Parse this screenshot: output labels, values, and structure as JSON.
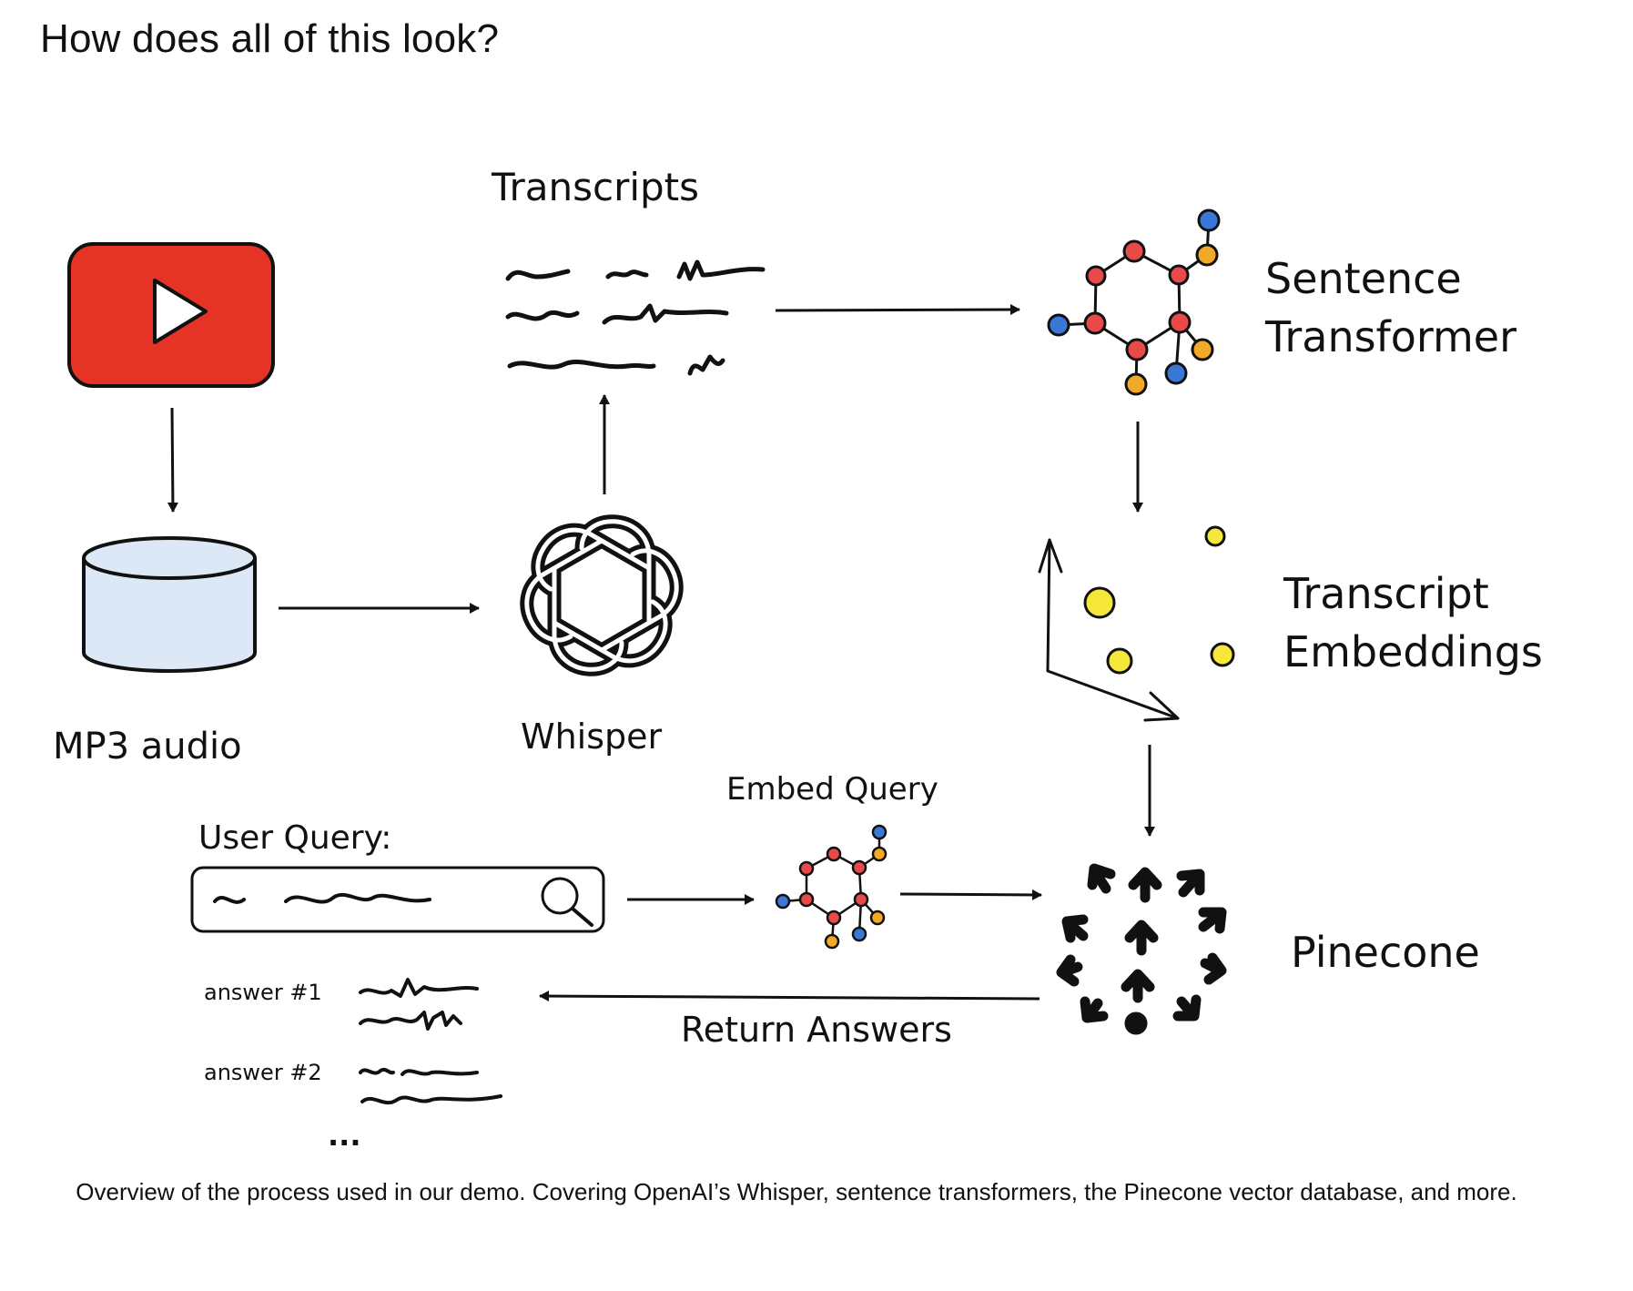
{
  "heading": "How does all of this look?",
  "labels": {
    "transcripts": "Transcripts",
    "sentence_transformer_line1": "Sentence",
    "sentence_transformer_line2": "Transformer",
    "mp3_audio": "MP3 audio",
    "whisper": "Whisper",
    "transcript_embeddings_line1": "Transcript",
    "transcript_embeddings_line2": "Embeddings",
    "embed_query": "Embed Query",
    "user_query": "User Query:",
    "pinecone": "Pinecone",
    "return_answers": "Return Answers",
    "answer_1": "answer #1",
    "answer_2": "answer #2",
    "ellipsis": "..."
  },
  "caption": "Overview of the process used in our demo. Covering OpenAI’s Whisper, sentence transformers, the Pinecone vector database, and more.",
  "colors": {
    "youtube_red": "#e53325",
    "mp3_fill": "#dce8f6",
    "node_red": "#e84a4a",
    "node_blue": "#3a78d8",
    "node_orange": "#f2a928",
    "embedding_yellow": "#f5e83a",
    "ink": "#111111"
  },
  "icons": {
    "video": "youtube-play-icon",
    "audio_store": "database-cylinder-icon",
    "model": "openai-logo-icon",
    "embedder": "molecule-graph-icon",
    "vector_db": "pinecone-logo-icon",
    "search": "magnifier-icon"
  }
}
